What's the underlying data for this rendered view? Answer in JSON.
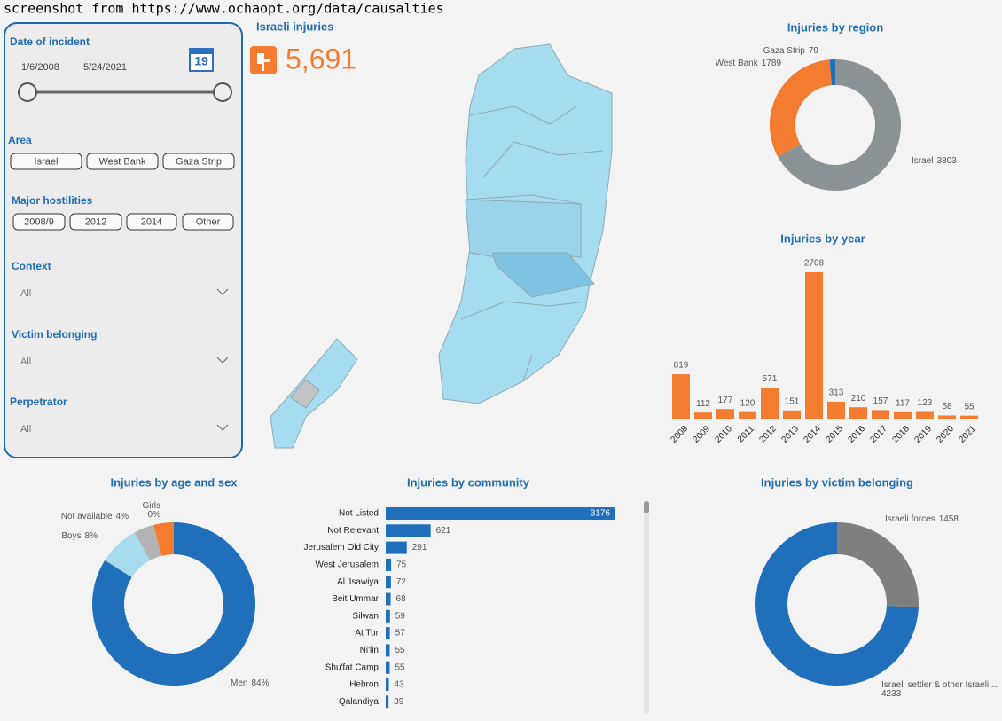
{
  "caption": "screenshot from https://www.ochaopt.org/data/causalties",
  "filters": {
    "date": {
      "label": "Date of incident",
      "start": "1/6/2008",
      "end": "5/24/2021",
      "calendar": "19"
    },
    "area": {
      "label": "Area",
      "options": [
        "Israel",
        "West Bank",
        "Gaza Strip"
      ]
    },
    "hostilities": {
      "label": "Major hostilities",
      "options": [
        "2008/9",
        "2012",
        "2014",
        "Other"
      ]
    },
    "dropdowns": [
      {
        "label": "Context",
        "value": "All"
      },
      {
        "label": "Victim belonging",
        "value": "All"
      },
      {
        "label": "Perpetrator",
        "value": "All"
      }
    ]
  },
  "kpi": {
    "title": "Israeli injuries",
    "value": "5,691"
  },
  "chart_data": [
    {
      "type": "pie",
      "title": "Injuries by region",
      "categories": [
        "Israel",
        "West Bank",
        "Gaza Strip"
      ],
      "values": [
        3803,
        1789,
        79
      ],
      "colors": [
        "#8a9296",
        "#f47c30",
        "#1f6fba"
      ]
    },
    {
      "type": "bar",
      "title": "Injuries by year",
      "categories": [
        "2008",
        "2009",
        "2010",
        "2011",
        "2012",
        "2013",
        "2014",
        "2015",
        "2016",
        "2017",
        "2018",
        "2019",
        "2020",
        "2021"
      ],
      "values": [
        819,
        112,
        177,
        120,
        571,
        151,
        2708,
        313,
        210,
        157,
        117,
        123,
        58,
        55
      ],
      "color": "#f47c30"
    },
    {
      "type": "pie",
      "title": "Injuries by age and sex",
      "categories": [
        "Men",
        "Boys",
        "Not available",
        null,
        "Girls"
      ],
      "values": [
        84,
        8,
        4,
        4,
        0
      ],
      "value_labels": [
        "84%",
        "8%",
        "4%",
        null,
        "0%"
      ],
      "colors": [
        "#1f6fba",
        "#a7dcef",
        "#b3b3b3",
        "#f47c30",
        "#f0a070"
      ]
    },
    {
      "type": "bar",
      "horizontal": true,
      "title": "Injuries by community",
      "categories": [
        "Not Listed",
        "Not Relevant",
        "Jerusalem Old City",
        "West Jerusalem",
        "Al 'Isawiya",
        "Beit Ummar",
        "Silwan",
        "At Tur",
        "Ni'lin",
        "Shu'fat Camp",
        "Hebron",
        "Qalandiya"
      ],
      "values": [
        3176,
        621,
        291,
        75,
        72,
        68,
        59,
        57,
        55,
        55,
        43,
        39
      ],
      "color": "#1f6fba"
    },
    {
      "type": "pie",
      "title": "Injuries by victim belonging",
      "categories": [
        "Israeli forces",
        "Israeli settler & other Israeli ..."
      ],
      "values": [
        1458,
        4233
      ],
      "colors": [
        "#7f7f7f",
        "#1f6fba"
      ]
    }
  ]
}
